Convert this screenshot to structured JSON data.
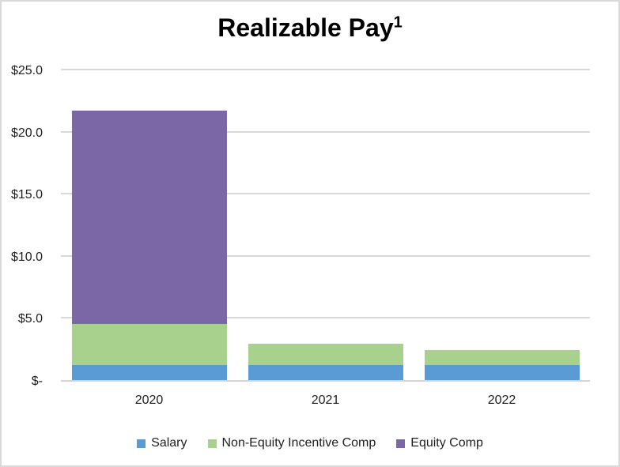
{
  "title": {
    "text": "Realizable Pay",
    "superscript": "1"
  },
  "chart_data": {
    "type": "bar",
    "stacked": true,
    "title": "Realizable Pay¹",
    "categories": [
      "2020",
      "2021",
      "2022"
    ],
    "series": [
      {
        "name": "Salary",
        "color": "#5B9BD5",
        "values": [
          1.2,
          1.2,
          1.2
        ]
      },
      {
        "name": "Non-Equity Incentive Comp",
        "color": "#A9D18E",
        "values": [
          3.3,
          1.7,
          1.2
        ]
      },
      {
        "name": "Equity Comp",
        "color": "#7B67A5",
        "values": [
          17.2,
          0,
          0
        ]
      }
    ],
    "totals": [
      21.7,
      2.9,
      2.4
    ],
    "xlabel": "",
    "ylabel": "",
    "ylim": [
      0,
      25
    ],
    "ytick_interval": 5,
    "ytick_labels": [
      "$-",
      "$5.0",
      "$10.0",
      "$15.0",
      "$20.0",
      "$25.0"
    ],
    "grid": true,
    "legend_position": "bottom"
  },
  "colors": {
    "gridline": "#d9d9d9",
    "axis_line": "#d4d4d4",
    "page_border": "#d9d9d9",
    "text": "#1f1f1f",
    "title_text": "#000000",
    "background": "#ffffff"
  }
}
